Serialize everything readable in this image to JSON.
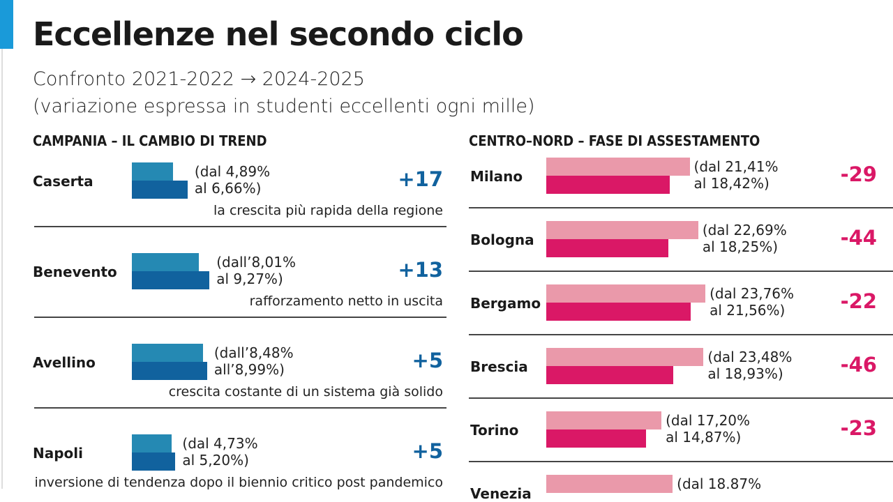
{
  "title": "Eccellenze nel secondo ciclo",
  "subtitle1": "Confronto 2021-2022 → 2024-2025",
  "subtitle2": "(variazione espressa in studenti eccellenti ogni mille)",
  "colors": {
    "accent": "#1a9ad9",
    "campania_old": "#2589b3",
    "campania_new": "#11629e",
    "centronord_old": "#ea99aa",
    "centronord_new": "#da1866",
    "delta_blue": "#11629e",
    "delta_pink": "#da1866"
  },
  "chart_data": [
    {
      "type": "bar",
      "title": "CAMPANIA – IL CAMBIO DI TREND",
      "categories": [
        "Caserta",
        "Benevento",
        "Avellino",
        "Napoli"
      ],
      "series": [
        {
          "values": [
            4.89,
            8.01,
            8.48,
            4.73
          ]
        },
        {
          "values": [
            6.66,
            9.27,
            8.99,
            5.2
          ]
        }
      ],
      "rows": [
        {
          "name": "Caserta",
          "label": "(dal 4,89%\nal 6,66%)",
          "delta": "+17",
          "note": "la crescita più rapida della regione"
        },
        {
          "name": "Benevento",
          "label": "(dall’8,01%\nal 9,27%)",
          "delta": "+13",
          "note": "rafforzamento netto in uscita"
        },
        {
          "name": "Avellino",
          "label": "(dall’8,48%\nall’8,99%)",
          "delta": "+5",
          "note": "crescita costante di un sistema già solido"
        },
        {
          "name": "Napoli",
          "label": "(dal 4,73%\nal 5,20%)",
          "delta": "+5",
          "note": "inversione di tendenza dopo il biennio critico post pandemico"
        }
      ]
    },
    {
      "type": "bar",
      "title": "CENTRO–NORD – FASE DI ASSESTAMENTO",
      "categories": [
        "Milano",
        "Bologna",
        "Bergamo",
        "Brescia",
        "Torino",
        "Venezia"
      ],
      "series": [
        {
          "values": [
            21.41,
            22.69,
            23.76,
            23.48,
            17.2,
            18.87
          ]
        },
        {
          "values": [
            18.42,
            18.25,
            21.56,
            18.93,
            14.87,
            null
          ]
        }
      ],
      "rows": [
        {
          "name": "Milano",
          "label": "(dal 21,41%\nal 18,42%)",
          "delta": "-29"
        },
        {
          "name": "Bologna",
          "label": "(dal 22,69%\nal 18,25%)",
          "delta": "-44"
        },
        {
          "name": "Bergamo",
          "label": "(dal 23,76%\nal 21,56%)",
          "delta": "-22"
        },
        {
          "name": "Brescia",
          "label": "(dal 23,48%\nal 18,93%)",
          "delta": "-46"
        },
        {
          "name": "Torino",
          "label": "(dal 17,20%\nal 14,87%)",
          "delta": "-23"
        },
        {
          "name": "Venezia",
          "label": "(dal 18.87%",
          "delta": ""
        }
      ]
    }
  ]
}
